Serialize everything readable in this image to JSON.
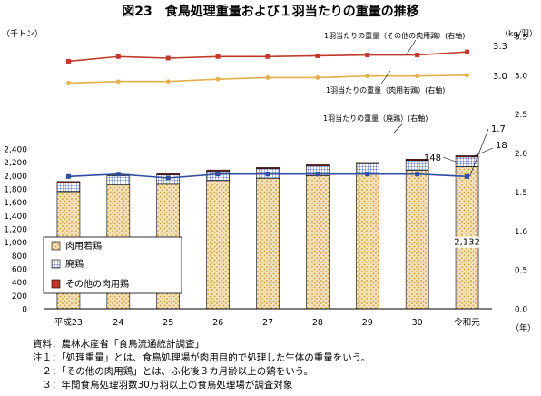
{
  "chart_data": {
    "type": "bar",
    "title": "図23　食鳥処理重量および１羽当たりの重量の推移",
    "left_unit": "（千トン）",
    "right_unit": "（kg/羽）",
    "x_unit": "（年）",
    "categories": [
      "平成23",
      "24",
      "25",
      "26",
      "27",
      "28",
      "29",
      "30",
      "令和元"
    ],
    "left_axis": {
      "min": 0,
      "max": 2400,
      "step": 200,
      "ticks": [
        "0",
        "200",
        "400",
        "600",
        "800",
        "1,000",
        "1,200",
        "1,400",
        "1,600",
        "1,800",
        "2,000",
        "2,200",
        "2,400"
      ]
    },
    "right_axis": {
      "min": 0.0,
      "max": 3.5,
      "step": 0.5,
      "ticks": [
        "0.0",
        "0.5",
        "1.0",
        "1.5",
        "2.0",
        "2.5",
        "3.0",
        "3.5"
      ]
    },
    "bar_series": [
      {
        "name": "肉用若鶏",
        "color": "#f3d9a3",
        "values": [
          1760,
          1860,
          1870,
          1925,
          1960,
          2000,
          2030,
          2080,
          2132
        ]
      },
      {
        "name": "廃鶏",
        "color": "#dde6f2",
        "values": [
          135,
          140,
          140,
          142,
          145,
          145,
          148,
          148,
          148
        ]
      },
      {
        "name": "その他の肉用鶏",
        "color": "#c0392b",
        "values": [
          16,
          16,
          16,
          17,
          17,
          17,
          18,
          18,
          18
        ]
      }
    ],
    "line_series": [
      {
        "name": "1羽当たりの重量（その他の肉用鶏）(右軸)",
        "color": "#c0392b",
        "marker": "square",
        "values": [
          3.18,
          3.24,
          3.22,
          3.24,
          3.24,
          3.25,
          3.26,
          3.26,
          3.3
        ]
      },
      {
        "name": "1羽当たりの重量（肉用若鶏）(右軸)",
        "color": "#e3b04b",
        "marker": "circle",
        "values": [
          2.9,
          2.92,
          2.92,
          2.95,
          2.97,
          2.97,
          2.99,
          2.99,
          3.0
        ]
      },
      {
        "name": "1羽当たりの重量（廃鶏）(右軸)",
        "color": "#2f4ea2",
        "marker": "square",
        "values": [
          1.7,
          1.73,
          1.68,
          1.73,
          1.73,
          1.73,
          1.73,
          1.73,
          1.7
        ]
      }
    ],
    "data_labels": {
      "other_weight_last": "3.3",
      "broiler_weight_last": "3.0",
      "hen_weight_last": "1.7",
      "broiler_bar_last": "2,132",
      "hen_bar_last": "148",
      "other_bar_last": "18"
    },
    "legend": {
      "position": "bottom-left",
      "items": [
        "肉用若鶏",
        "廃鶏",
        "その他の肉用鶏"
      ]
    }
  },
  "notes": [
    "資料：農林水産省「食鳥流通統計調査」",
    "注１：「処理重量」とは、食鳥処理場が肉用目的で処理した生体の重量をいう。",
    "　２：「その他の肉用鶏」とは、ふ化後３カ月齢以上の鶏をいう。",
    "　３：年間食鳥処理羽数30万羽以上の食鳥処理場が調査対象"
  ]
}
